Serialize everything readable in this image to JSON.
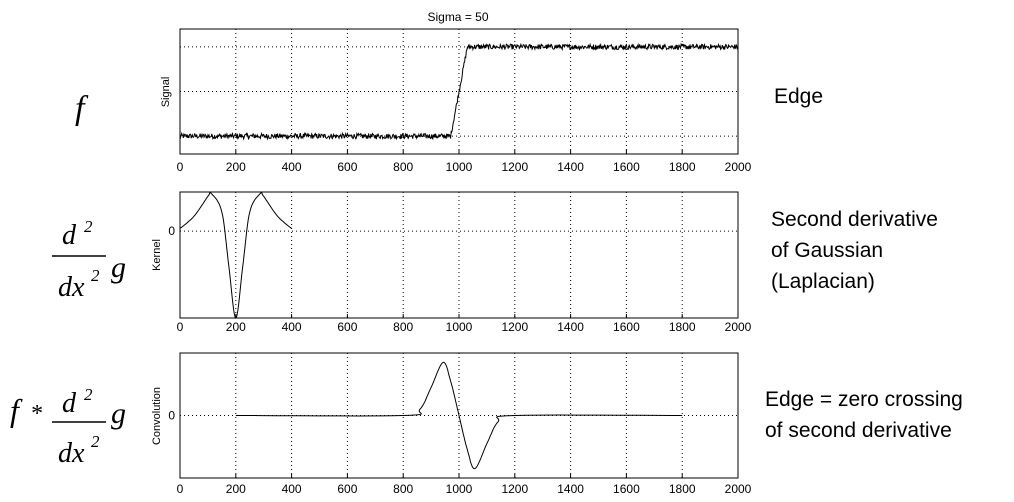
{
  "title": "Sigma = 50",
  "panels": [
    {
      "id": "signal",
      "formula": "f",
      "ylabel": "Signal",
      "ytick_label": "",
      "description": [
        "Edge"
      ],
      "xticks": [
        "0",
        "200",
        "400",
        "600",
        "800",
        "1000",
        "1200",
        "1400",
        "1600",
        "1800",
        "2000"
      ]
    },
    {
      "id": "kernel",
      "formula": "d²/dx² g",
      "ylabel": "Kernel",
      "ytick_label": "0",
      "description": [
        "Second derivative",
        "of Gaussian",
        "(Laplacian)"
      ],
      "xticks": [
        "0",
        "200",
        "400",
        "600",
        "800",
        "1000",
        "1200",
        "1400",
        "1600",
        "1800",
        "2000"
      ]
    },
    {
      "id": "convolution",
      "formula": "f * d²/dx² g",
      "ylabel": "Convolution",
      "ytick_label": "0",
      "description": [
        "Edge = zero crossing",
        "of second derivative"
      ],
      "xticks": [
        "0",
        "200",
        "400",
        "600",
        "800",
        "1000",
        "1200",
        "1400",
        "1600",
        "1800",
        "2000"
      ]
    }
  ],
  "formula_parts": {
    "f": "f",
    "d": "d",
    "two": "2",
    "dx": "dx",
    "g": "g",
    "star": "*"
  },
  "chart_data": [
    {
      "type": "line",
      "title": "Sigma = 50",
      "ylabel": "Signal",
      "xlim": [
        0,
        2000
      ],
      "ylim": [
        -0.2,
        1.2
      ],
      "grid": true,
      "series": [
        {
          "x": [
            0,
            200,
            400,
            600,
            800,
            970,
            1000,
            1030,
            1200,
            1400,
            1600,
            1800,
            2000
          ],
          "y": [
            0,
            0,
            0,
            0,
            0,
            0,
            0.5,
            1,
            1,
            1,
            1,
            1,
            1
          ],
          "noise": 0.03
        }
      ]
    },
    {
      "type": "line",
      "ylabel": "Kernel",
      "xlim": [
        0,
        2000
      ],
      "ylim": [
        -1.0,
        0.45
      ],
      "yticks": [
        0
      ],
      "grid": true,
      "series": [
        {
          "x": [
            0,
            50,
            100,
            113,
            150,
            175,
            200,
            225,
            250,
            287,
            300,
            350,
            400
          ],
          "y": [
            0.03,
            0.17,
            0.4,
            0.43,
            0.22,
            -0.4,
            -1.0,
            -0.4,
            0.22,
            0.43,
            0.4,
            0.17,
            0.03
          ]
        }
      ]
    },
    {
      "type": "line",
      "ylabel": "Convolution",
      "xlim": [
        0,
        2000
      ],
      "ylim": [
        -1.0,
        1.0
      ],
      "yticks": [
        0
      ],
      "grid": true,
      "series": [
        {
          "x": [
            200,
            800,
            860,
            900,
            943,
            970,
            1000,
            1030,
            1057,
            1100,
            1140,
            1200,
            1800
          ],
          "y": [
            0,
            0,
            0.1,
            0.45,
            0.85,
            0.55,
            0,
            -0.55,
            -0.85,
            -0.45,
            -0.1,
            0,
            0
          ]
        }
      ]
    }
  ]
}
